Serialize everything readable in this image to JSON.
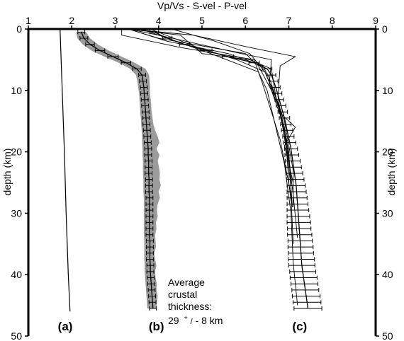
{
  "chart_data": {
    "type": "line",
    "title": "Vp/Vs - S-vel - P-vel",
    "ylabel_left": "depth (km)",
    "ylabel_right": "depth (km)",
    "xlim": [
      1,
      9
    ],
    "ylim": [
      0,
      50
    ],
    "y_inverted": true,
    "x_ticks": [
      1,
      2,
      3,
      4,
      5,
      6,
      7,
      8,
      9
    ],
    "y_ticks": [
      0,
      10,
      20,
      30,
      40,
      50
    ],
    "grid": false,
    "panel_labels": [
      {
        "label": "(a)",
        "x": 1.85,
        "y": 48.4
      },
      {
        "label": "(b)",
        "x": 3.95,
        "y": 48.4
      },
      {
        "label": "(c)",
        "x": 7.25,
        "y": 48.4
      }
    ],
    "annotation": {
      "lines": [
        "Average",
        "crustal",
        "thickness:"
      ],
      "value_main": "29",
      "value_sup": "+",
      "value_sub": "/",
      "value_rest": "- 8 km"
    },
    "series": [
      {
        "id": "a",
        "style": "thin-line",
        "x": [
          1.73,
          1.78,
          1.83,
          1.87,
          1.92,
          1.96
        ],
        "y": [
          0,
          10,
          20,
          30,
          40,
          46
        ]
      },
      {
        "id": "b",
        "style": "error-bars-with-band",
        "depth": [
          0.5,
          1.5,
          2.5,
          3.5,
          4.5,
          5.5,
          6.5,
          7.5,
          8.5,
          9.5,
          10.5,
          11.5,
          12.5,
          13.5,
          14.5,
          15.5,
          16.5,
          17.5,
          18.5,
          19.5,
          20.5,
          21.5,
          22.5,
          23.5,
          24.5,
          25.5,
          26.5,
          27.5,
          28.5,
          29.5,
          30.5,
          31.5,
          32.5,
          33.5,
          34.5,
          35.5,
          36.5,
          37.5,
          38.5,
          39.5,
          40.5,
          41.5,
          42.5,
          43.5,
          44.5,
          45.5
        ],
        "value": [
          2.22,
          2.28,
          2.42,
          2.65,
          2.95,
          3.25,
          3.5,
          3.62,
          3.64,
          3.66,
          3.67,
          3.68,
          3.69,
          3.7,
          3.71,
          3.72,
          3.73,
          3.74,
          3.75,
          3.76,
          3.76,
          3.77,
          3.77,
          3.77,
          3.78,
          3.78,
          3.78,
          3.79,
          3.79,
          3.79,
          3.79,
          3.79,
          3.79,
          3.79,
          3.8,
          3.8,
          3.8,
          3.8,
          3.81,
          3.81,
          3.82,
          3.83,
          3.84,
          3.85,
          3.86,
          3.87
        ],
        "error": [
          0.08,
          0.09,
          0.1,
          0.11,
          0.12,
          0.11,
          0.1,
          0.08,
          0.08,
          0.08,
          0.08,
          0.08,
          0.08,
          0.08,
          0.08,
          0.08,
          0.08,
          0.08,
          0.08,
          0.08,
          0.08,
          0.08,
          0.08,
          0.08,
          0.08,
          0.08,
          0.08,
          0.08,
          0.08,
          0.08,
          0.08,
          0.08,
          0.08,
          0.08,
          0.08,
          0.08,
          0.08,
          0.08,
          0.08,
          0.08,
          0.08,
          0.08,
          0.08,
          0.08,
          0.08,
          0.08
        ],
        "band_left": [
          2.1,
          2.13,
          2.25,
          2.45,
          2.75,
          3.08,
          3.35,
          3.48,
          3.51,
          3.53,
          3.55,
          3.56,
          3.57,
          3.58,
          3.59,
          3.6,
          3.61,
          3.62,
          3.62,
          3.63,
          3.63,
          3.64,
          3.64,
          3.64,
          3.65,
          3.65,
          3.65,
          3.66,
          3.66,
          3.66,
          3.66,
          3.66,
          3.66,
          3.66,
          3.67,
          3.67,
          3.67,
          3.67,
          3.68,
          3.68,
          3.69,
          3.7,
          3.71,
          3.72,
          3.73,
          3.74
        ],
        "band_right": [
          2.33,
          2.42,
          2.6,
          2.85,
          3.15,
          3.45,
          3.7,
          3.78,
          3.79,
          3.8,
          3.8,
          3.82,
          3.83,
          3.84,
          3.86,
          3.88,
          3.92,
          3.98,
          4.02,
          3.95,
          4.02,
          3.98,
          4.01,
          4.03,
          4.02,
          4.05,
          4.0,
          4.03,
          3.98,
          3.96,
          3.98,
          3.94,
          3.95,
          3.92,
          3.93,
          3.94,
          3.9,
          3.92,
          3.95,
          3.92,
          3.93,
          3.96,
          3.95,
          3.98,
          3.96,
          3.95
        ]
      },
      {
        "id": "c",
        "style": "error-bars",
        "depth": [
          0.5,
          1.5,
          2.5,
          3.5,
          4.5,
          5.5,
          6.5,
          7.5,
          8.5,
          9.5,
          10.5,
          11.5,
          12.5,
          13.5,
          14.5,
          15.5,
          16.5,
          17.5,
          18.5,
          19.5,
          20.5,
          21.5,
          22.5,
          23.5,
          24.5,
          25.5,
          26.5,
          27.5,
          28.5,
          29.5,
          30.5,
          31.5,
          32.5,
          33.5,
          34.5,
          35.5,
          36.5,
          37.5,
          38.5,
          39.5,
          40.5,
          41.5,
          42.5,
          43.5,
          44.5,
          45.5
        ],
        "value": [
          3.9,
          4.2,
          4.6,
          5.1,
          5.6,
          6.2,
          6.5,
          6.6,
          6.65,
          6.7,
          6.74,
          6.78,
          6.82,
          6.86,
          6.9,
          6.93,
          6.96,
          6.99,
          7.02,
          7.05,
          7.07,
          7.09,
          7.11,
          7.13,
          7.15,
          7.17,
          7.18,
          7.19,
          7.2,
          7.21,
          7.22,
          7.23,
          7.24,
          7.25,
          7.26,
          7.27,
          7.28,
          7.29,
          7.3,
          7.32,
          7.34,
          7.36,
          7.38,
          7.4,
          7.42,
          7.44
        ],
        "error": [
          0.1,
          0.11,
          0.12,
          0.13,
          0.13,
          0.12,
          0.11,
          0.1,
          0.1,
          0.1,
          0.1,
          0.1,
          0.11,
          0.11,
          0.12,
          0.12,
          0.13,
          0.13,
          0.14,
          0.15,
          0.16,
          0.17,
          0.18,
          0.19,
          0.2,
          0.21,
          0.22,
          0.23,
          0.24,
          0.25,
          0.26,
          0.27,
          0.27,
          0.28,
          0.28,
          0.29,
          0.29,
          0.3,
          0.3,
          0.3,
          0.31,
          0.31,
          0.31,
          0.32,
          0.32,
          0.32
        ]
      },
      {
        "id": "c-models",
        "style": "thin-lines",
        "lines": [
          {
            "x": [
              3.15,
              3.6,
              5.2,
              6.3,
              6.5,
              6.7,
              6.9,
              7.05,
              7.1,
              7.2
            ],
            "y": [
              0,
              0,
              4,
              7,
              10,
              16,
              22,
              30,
              38,
              45
            ]
          },
          {
            "x": [
              3.15,
              3.15,
              4.5,
              6.2,
              6.4,
              6.8,
              7.05,
              7.1
            ],
            "y": [
              0,
              1,
              3,
              5,
              9,
              18,
              27,
              35
            ]
          },
          {
            "x": [
              3.3,
              4.8,
              6.1,
              7.15,
              6.8,
              6.75,
              6.95,
              7.0,
              7.05
            ],
            "y": [
              0,
              1,
              3,
              4.5,
              6,
              11,
              20,
              25,
              28
            ]
          },
          {
            "x": [
              3.3,
              4.0,
              5.9,
              6.6,
              6.55,
              6.9,
              7.1,
              7.1
            ],
            "y": [
              0,
              1,
              4,
              5,
              9,
              15,
              23,
              29
            ]
          },
          {
            "x": [
              3.3,
              4.5,
              5.0,
              6.1,
              6.6,
              6.7,
              6.95,
              7.1,
              7.2
            ],
            "y": [
              0,
              1,
              4,
              5,
              6.5,
              11,
              18,
              27,
              34
            ]
          },
          {
            "x": [
              3.3,
              4.2,
              5.6,
              6.4,
              6.55,
              6.85,
              7.15,
              6.9,
              7.1
            ],
            "y": [
              0,
              2,
              4,
              6,
              8,
              14,
              16,
              19,
              25
            ]
          },
          {
            "x": [
              3.3,
              4.0,
              6.0,
              6.3,
              6.6,
              6.8,
              6.95,
              7.05
            ],
            "y": [
              0,
              1.5,
              4,
              6,
              10,
              14,
              19,
              26
            ]
          },
          {
            "x": [
              4.3,
              5.3,
              6.1,
              6.45,
              6.7,
              6.9,
              7.0
            ],
            "y": [
              0,
              2,
              4,
              7,
              11,
              16,
              22
            ]
          },
          {
            "x": [
              3.8,
              4.9,
              5.8,
              6.45,
              6.75,
              7.0,
              7.08
            ],
            "y": [
              0,
              3,
              5,
              7,
              12,
              20,
              29
            ]
          }
        ]
      }
    ]
  }
}
